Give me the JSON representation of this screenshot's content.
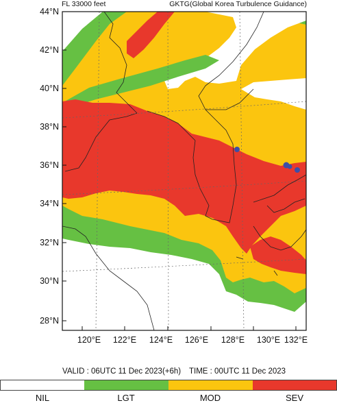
{
  "header": {
    "flight_level": "FL 33000 feet",
    "product": "GKTG(Global Korea Turbulence Guidance)"
  },
  "axes": {
    "lat_labels": [
      "44°N",
      "42°N",
      "40°N",
      "38°N",
      "36°N",
      "34°N",
      "32°N",
      "30°N",
      "28°N"
    ],
    "lon_labels": [
      "120°E",
      "122°E",
      "124°E",
      "126°E",
      "128°E",
      "130°E",
      "132°E"
    ]
  },
  "info": {
    "valid": "VALID : 06UTC 11 Dec 2023(+6h)",
    "time": "TIME : 00UTC 11 Dec 2023"
  },
  "legend": [
    {
      "label": "NIL",
      "color": "#ffffff"
    },
    {
      "label": "LGT",
      "color": "#66c043"
    },
    {
      "label": "MOD",
      "color": "#fbc50f"
    },
    {
      "label": "SEV",
      "color": "#e8382c"
    }
  ],
  "colors": {
    "nil": "#ffffff",
    "light": "#66c043",
    "moderate": "#fbc50f",
    "severe": "#e8382c",
    "extreme": "#3c4fa8",
    "coast": "#222222",
    "grid": "#666666"
  }
}
